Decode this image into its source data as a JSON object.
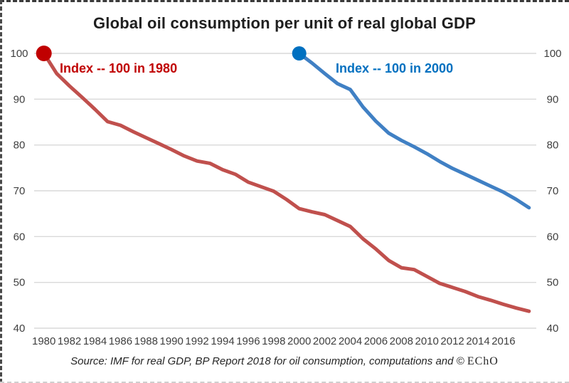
{
  "title": "Global oil consumption per unit of real global GDP",
  "source_note": {
    "main": "Source: IMF for real GDP, BP Report 2018 for oil consumption, computations and © ",
    "brand": "EChO"
  },
  "colors": {
    "grid": "#d9d9d9",
    "axis_text": "#3f3f3f",
    "title_text": "#1f1f1f",
    "red_line": "#c0504d",
    "red_accent": "#c00000",
    "blue_line": "#4080c4",
    "blue_accent": "#0070c0"
  },
  "chart_data": {
    "type": "line",
    "title": "Global oil consumption per unit of real global GDP",
    "xlabel": "",
    "ylabel": "",
    "x_range": [
      1980,
      2018
    ],
    "ylim": [
      40,
      100
    ],
    "grid": true,
    "legend_position": "inline-top",
    "x_ticks": [
      1980,
      1982,
      1984,
      1986,
      1988,
      1990,
      1992,
      1994,
      1996,
      1998,
      2000,
      2002,
      2004,
      2006,
      2008,
      2010,
      2012,
      2014,
      2016
    ],
    "y_ticks": [
      100,
      90,
      80,
      70,
      60,
      50,
      40
    ],
    "series": [
      {
        "id": "index-1980",
        "name": "Index -- 100 in 1980",
        "color": "#c0504d",
        "marker_color": "#c00000",
        "label_color": "#c00000",
        "marker_radius": 11,
        "start_year": 1980,
        "values": [
          100,
          95.6,
          92.9,
          90.4,
          87.8,
          85.1,
          84.3,
          82.9,
          81.6,
          80.3,
          79.0,
          77.6,
          76.5,
          76.0,
          74.6,
          73.6,
          71.9,
          70.9,
          69.9,
          68.1,
          66.1,
          65.4,
          64.8,
          63.5,
          62.2,
          59.5,
          57.3,
          54.8,
          53.2,
          52.8,
          51.3,
          49.8,
          48.9,
          48.0,
          46.9,
          46.1,
          45.2,
          44.4,
          43.7
        ]
      },
      {
        "id": "index-2000",
        "name": "Index -- 100 in 2000",
        "color": "#4080c4",
        "marker_color": "#0070c0",
        "label_color": "#0070c0",
        "marker_radius": 10,
        "start_year": 2000,
        "values": [
          100,
          97.9,
          95.6,
          93.4,
          92.1,
          88.3,
          85.2,
          82.6,
          81.0,
          79.6,
          78.1,
          76.4,
          74.9,
          73.6,
          72.3,
          71.0,
          69.7,
          68.1,
          66.3
        ]
      }
    ]
  }
}
